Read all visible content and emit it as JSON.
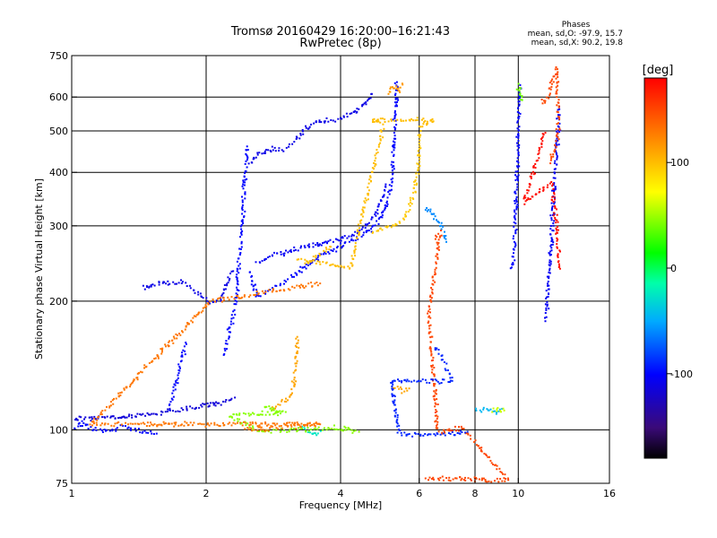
{
  "header": {
    "title": "Tromsø 20160429 16:20:00–16:21:43",
    "subtitle": "RwPretec (8p)",
    "stats_title": "Phases",
    "stats_o": "mean, sd,O: -97.9, 15.7",
    "stats_x": "mean, sd,X:  90.2, 19.8"
  },
  "chart_data": {
    "type": "scatter",
    "xlabel": "Frequency [MHz]",
    "ylabel": "Stationary phase Virtual Height [km]",
    "xscale": "log",
    "yscale": "log",
    "xlim": [
      1,
      16
    ],
    "ylim": [
      75,
      750
    ],
    "xticks": [
      1,
      2,
      4,
      6,
      8,
      10,
      16
    ],
    "xtick_labels": [
      "1",
      "2",
      "4",
      "6",
      "8",
      "10",
      "16"
    ],
    "yticks": [
      75,
      100,
      200,
      300,
      400,
      500,
      600,
      750
    ],
    "ytick_labels": [
      "75",
      "100",
      "200",
      "300",
      "400",
      "500",
      "600",
      "750"
    ],
    "grid_x": [
      2,
      4,
      6,
      8,
      10
    ],
    "grid_y": [
      100,
      200,
      300,
      400,
      500,
      600
    ],
    "colorbar": {
      "label": "[deg]",
      "range": [
        -180,
        180
      ],
      "ticks": [
        100,
        0,
        -100
      ],
      "tick_labels": [
        "100",
        "0",
        "-100"
      ]
    },
    "traces": [
      {
        "phase": -100,
        "pts": [
          [
            1.0,
            100
          ],
          [
            1.05,
            104
          ],
          [
            1.1,
            101
          ],
          [
            1.2,
            99
          ],
          [
            1.3,
            102
          ],
          [
            1.45,
            99
          ],
          [
            1.55,
            98
          ]
        ]
      },
      {
        "phase": -115,
        "pts": [
          [
            1.0,
            106
          ],
          [
            1.2,
            107
          ],
          [
            1.4,
            108
          ],
          [
            1.6,
            110
          ],
          [
            1.8,
            112
          ],
          [
            2.0,
            114
          ],
          [
            2.2,
            116
          ],
          [
            2.32,
            119
          ]
        ]
      },
      {
        "phase": -100,
        "pts": [
          [
            1.65,
            112
          ],
          [
            1.7,
            125
          ],
          [
            1.75,
            140
          ],
          [
            1.8,
            160
          ]
        ]
      },
      {
        "phase": -100,
        "pts": [
          [
            2.2,
            150
          ],
          [
            2.25,
            170
          ],
          [
            2.3,
            185
          ],
          [
            2.33,
            200
          ],
          [
            2.36,
            240
          ],
          [
            2.4,
            280
          ],
          [
            2.42,
            320
          ],
          [
            2.45,
            400
          ],
          [
            2.47,
            460
          ]
        ]
      },
      {
        "phase": -110,
        "pts": [
          [
            1.45,
            216
          ],
          [
            1.6,
            220
          ],
          [
            1.75,
            222
          ],
          [
            1.85,
            215
          ],
          [
            1.95,
            205
          ],
          [
            2.05,
            198
          ],
          [
            2.15,
            200
          ],
          [
            2.2,
            215
          ],
          [
            2.3,
            235
          ]
        ]
      },
      {
        "phase": -100,
        "pts": [
          [
            2.5,
            235
          ],
          [
            2.6,
            205
          ],
          [
            2.8,
            213
          ],
          [
            3.0,
            222
          ],
          [
            3.2,
            232
          ],
          [
            3.4,
            245
          ],
          [
            3.6,
            255
          ],
          [
            3.8,
            262
          ],
          [
            4.0,
            268
          ],
          [
            4.3,
            278
          ],
          [
            4.5,
            285
          ],
          [
            4.7,
            297
          ],
          [
            4.9,
            312
          ],
          [
            5.1,
            340
          ],
          [
            5.2,
            380
          ],
          [
            5.25,
            450
          ],
          [
            5.3,
            520
          ],
          [
            5.32,
            580
          ],
          [
            5.35,
            650
          ]
        ]
      },
      {
        "phase": -105,
        "pts": [
          [
            2.6,
            245
          ],
          [
            2.8,
            255
          ],
          [
            3.0,
            260
          ],
          [
            3.2,
            265
          ],
          [
            3.5,
            270
          ],
          [
            3.8,
            276
          ],
          [
            4.1,
            282
          ],
          [
            4.4,
            290
          ],
          [
            4.6,
            302
          ],
          [
            4.8,
            320
          ],
          [
            4.95,
            345
          ],
          [
            5.05,
            375
          ]
        ]
      },
      {
        "phase": -110,
        "pts": [
          [
            2.5,
            420
          ],
          [
            2.6,
            440
          ],
          [
            2.8,
            455
          ],
          [
            3.0,
            450
          ],
          [
            3.15,
            470
          ],
          [
            3.3,
            500
          ],
          [
            3.5,
            520
          ],
          [
            3.7,
            530
          ],
          [
            3.9,
            528
          ],
          [
            4.1,
            540
          ],
          [
            4.3,
            550
          ],
          [
            4.5,
            575
          ],
          [
            4.7,
            610
          ]
        ]
      },
      {
        "phase": 95,
        "pts": [
          [
            4.7,
            290
          ],
          [
            4.9,
            294
          ],
          [
            5.1,
            297
          ],
          [
            5.3,
            300
          ],
          [
            5.5,
            310
          ],
          [
            5.7,
            330
          ],
          [
            5.85,
            360
          ],
          [
            5.95,
            400
          ],
          [
            6.0,
            450
          ],
          [
            6.05,
            500
          ]
        ]
      },
      {
        "phase": 100,
        "pts": [
          [
            3.35,
            245
          ],
          [
            3.5,
            252
          ],
          [
            3.65,
            260
          ],
          [
            3.8,
            268
          ]
        ]
      },
      {
        "phase": 110,
        "pts": [
          [
            2.8,
            112
          ],
          [
            2.95,
            116
          ],
          [
            3.05,
            118
          ],
          [
            3.12,
            122
          ],
          [
            3.16,
            135
          ],
          [
            3.18,
            150
          ],
          [
            3.2,
            165
          ]
        ]
      },
      {
        "phase": 115,
        "pts": [
          [
            5.1,
            610
          ],
          [
            5.2,
            630
          ],
          [
            5.3,
            640
          ],
          [
            5.4,
            620
          ],
          [
            5.5,
            645
          ]
        ]
      },
      {
        "phase": 110,
        "pts": [
          [
            5.3,
            126
          ],
          [
            5.5,
            123
          ],
          [
            5.7,
            125
          ]
        ]
      },
      {
        "phase": -25,
        "pts": [
          [
            3.3,
            101
          ],
          [
            3.4,
            99
          ],
          [
            3.55,
            98
          ],
          [
            3.65,
            100
          ]
        ]
      },
      {
        "phase": -45,
        "pts": [
          [
            8.0,
            112
          ],
          [
            8.3,
            111
          ],
          [
            8.6,
            112
          ],
          [
            8.9,
            110
          ],
          [
            9.2,
            112
          ]
        ]
      },
      {
        "phase": 60,
        "pts": [
          [
            8.7,
            111
          ],
          [
            9.0,
            112
          ],
          [
            9.3,
            111
          ]
        ]
      },
      {
        "phase": -100,
        "pts": [
          [
            9.7,
            240
          ],
          [
            9.75,
            250
          ],
          [
            9.8,
            270
          ],
          [
            9.85,
            320
          ],
          [
            9.9,
            380
          ],
          [
            9.95,
            430
          ],
          [
            10.0,
            500
          ],
          [
            10.05,
            560
          ],
          [
            10.1,
            640
          ]
        ]
      },
      {
        "phase": -105,
        "pts": [
          [
            11.5,
            180
          ],
          [
            11.6,
            200
          ],
          [
            11.7,
            230
          ],
          [
            11.8,
            260
          ],
          [
            11.9,
            300
          ],
          [
            12.0,
            350
          ],
          [
            12.1,
            400
          ],
          [
            12.2,
            460
          ],
          [
            12.3,
            510
          ],
          [
            12.35,
            570
          ]
        ]
      },
      {
        "phase": 40,
        "pts": [
          [
            10.0,
            640
          ],
          [
            10.1,
            610
          ],
          [
            10.2,
            590
          ]
        ]
      },
      {
        "phase": 150,
        "pts": [
          [
            11.3,
            590
          ],
          [
            11.5,
            580
          ],
          [
            12.2,
            700
          ],
          [
            12.3,
            490
          ],
          [
            11.8,
            420
          ]
        ]
      },
      {
        "phase": -60,
        "pts": [
          [
            6.2,
            330
          ],
          [
            6.4,
            320
          ],
          [
            6.6,
            310
          ],
          [
            6.8,
            290
          ],
          [
            6.9,
            275
          ]
        ]
      },
      {
        "phase": 150,
        "pts": [
          [
            6.5,
            280
          ],
          [
            6.7,
            290
          ],
          [
            6.3,
            188
          ],
          [
            6.6,
            100
          ],
          [
            6.8,
            99
          ],
          [
            7.0,
            100
          ],
          [
            7.5,
            101
          ],
          [
            9.5,
            76
          ],
          [
            6.2,
            77
          ]
        ]
      },
      {
        "phase": -90,
        "pts": [
          [
            6.5,
            155
          ],
          [
            6.7,
            150
          ],
          [
            6.9,
            140
          ],
          [
            7.1,
            130
          ],
          [
            5.2,
            130
          ],
          [
            5.4,
            98
          ],
          [
            6.1,
            97
          ],
          [
            7.2,
            98
          ],
          [
            7.7,
            99
          ]
        ]
      },
      {
        "phase": 100,
        "pts": [
          [
            6.0,
            510
          ],
          [
            6.5,
            530
          ],
          [
            4.7,
            530
          ],
          [
            5.0,
            520
          ],
          [
            4.2,
            240
          ],
          [
            3.2,
            250
          ]
        ]
      },
      {
        "phase": 45,
        "pts": [
          [
            2.7,
            113
          ],
          [
            3.0,
            110
          ],
          [
            2.25,
            108
          ],
          [
            2.65,
            99
          ],
          [
            3.9,
            101
          ],
          [
            4.4,
            99
          ]
        ]
      },
      {
        "phase": 130,
        "pts": [
          [
            2.45,
            100
          ],
          [
            3.6,
            103
          ],
          [
            1.1,
            103
          ],
          [
            2.05,
            200
          ],
          [
            3.6,
            220
          ]
        ]
      },
      {
        "phase": 175,
        "pts": [
          [
            12.4,
            240
          ],
          [
            11.9,
            380
          ],
          [
            10.3,
            340
          ],
          [
            11.5,
            495
          ]
        ]
      }
    ]
  }
}
